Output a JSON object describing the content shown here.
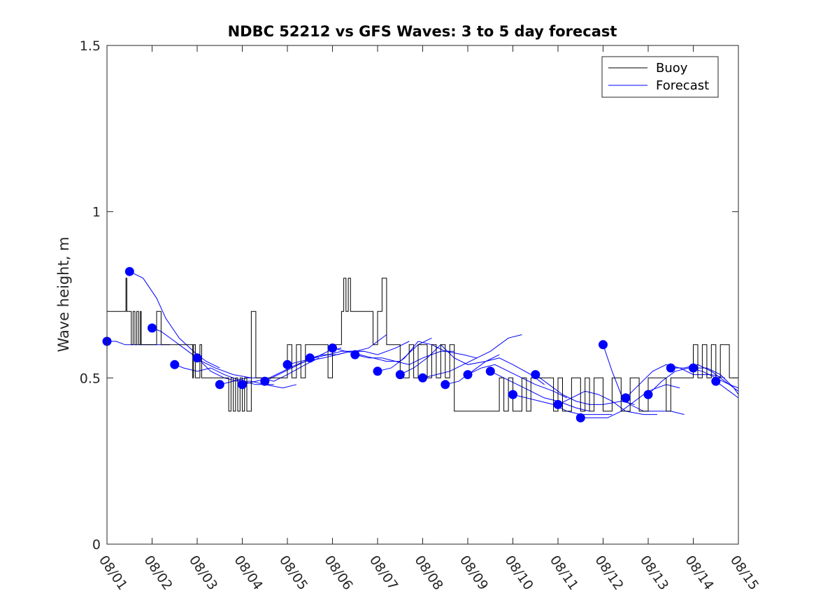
{
  "chart_data": {
    "type": "line",
    "title": "NDBC 52212 vs GFS Waves: 3 to 5 day forecast",
    "xlabel": "",
    "ylabel": "Wave height, m",
    "xlim": [
      0,
      14
    ],
    "ylim": [
      0,
      1.5
    ],
    "yticks": [
      0,
      0.5,
      1,
      1.5
    ],
    "ytick_labels": [
      "0",
      "0.5",
      "1",
      "1.5"
    ],
    "xtick_labels": [
      "08/01",
      "08/02",
      "08/03",
      "08/04",
      "08/05",
      "08/06",
      "08/07",
      "08/08",
      "08/09",
      "08/10",
      "08/11",
      "08/12",
      "08/13",
      "08/14",
      "08/15"
    ],
    "legend": {
      "position": "top-right",
      "entries": [
        {
          "label": "Buoy",
          "color": "#000000"
        },
        {
          "label": "Forecast",
          "color": "#0000ff"
        }
      ]
    },
    "colors": {
      "buoy": "#000000",
      "forecast": "#0000ff"
    },
    "buoy": {
      "name": "Buoy",
      "x": [
        0,
        0.2,
        0.4,
        0.42,
        0.44,
        0.5,
        0.54,
        0.58,
        0.62,
        0.66,
        0.7,
        0.74,
        0.76,
        0.8,
        1.0,
        1.1,
        1.2,
        1.5,
        1.8,
        1.9,
        1.92,
        1.96,
        2.0,
        2.06,
        2.1,
        2.2,
        2.3,
        2.4,
        2.6,
        2.7,
        2.75,
        2.8,
        2.85,
        2.9,
        2.95,
        3.0,
        3.05,
        3.1,
        3.2,
        3.3,
        3.5,
        3.9,
        4.0,
        4.1,
        4.2,
        4.3,
        4.4,
        4.6,
        4.8,
        4.9,
        5.0,
        5.1,
        5.2,
        5.25,
        5.3,
        5.35,
        5.4,
        5.6,
        5.8,
        5.9,
        6.0,
        6.1,
        6.2,
        6.3,
        6.5,
        6.7,
        6.8,
        6.9,
        7.0,
        7.1,
        7.2,
        7.3,
        7.4,
        7.5,
        7.6,
        7.7,
        7.8,
        8.0,
        8.2,
        8.4,
        8.6,
        8.7,
        8.8,
        8.9,
        9.0,
        9.2,
        9.3,
        9.4,
        9.5,
        9.6,
        9.7,
        9.8,
        9.9,
        10.0,
        10.1,
        10.3,
        10.5,
        10.6,
        10.7,
        10.8,
        11.0,
        11.2,
        11.4,
        11.6,
        11.8,
        11.9,
        12.0,
        12.2,
        12.4,
        12.5,
        12.6,
        12.8,
        13.0,
        13.1,
        13.2,
        13.3,
        13.4,
        13.5,
        13.6,
        13.8,
        14.0
      ],
      "y": [
        0.7,
        0.7,
        0.7,
        0.8,
        0.7,
        0.7,
        0.6,
        0.7,
        0.6,
        0.7,
        0.6,
        0.7,
        0.6,
        0.6,
        0.6,
        0.7,
        0.6,
        0.6,
        0.6,
        0.5,
        0.6,
        0.5,
        0.5,
        0.6,
        0.5,
        0.5,
        0.5,
        0.5,
        0.5,
        0.4,
        0.5,
        0.4,
        0.5,
        0.4,
        0.5,
        0.4,
        0.5,
        0.4,
        0.7,
        0.5,
        0.5,
        0.5,
        0.6,
        0.5,
        0.6,
        0.5,
        0.6,
        0.6,
        0.6,
        0.5,
        0.6,
        0.6,
        0.7,
        0.8,
        0.7,
        0.8,
        0.7,
        0.7,
        0.7,
        0.6,
        0.7,
        0.8,
        0.6,
        0.6,
        0.5,
        0.6,
        0.5,
        0.6,
        0.6,
        0.5,
        0.6,
        0.5,
        0.6,
        0.5,
        0.6,
        0.4,
        0.4,
        0.4,
        0.4,
        0.4,
        0.4,
        0.5,
        0.4,
        0.5,
        0.4,
        0.5,
        0.4,
        0.5,
        0.5,
        0.5,
        0.5,
        0.5,
        0.4,
        0.5,
        0.4,
        0.5,
        0.4,
        0.5,
        0.4,
        0.5,
        0.4,
        0.5,
        0.4,
        0.5,
        0.4,
        0.4,
        0.5,
        0.5,
        0.4,
        0.5,
        0.5,
        0.5,
        0.6,
        0.5,
        0.6,
        0.5,
        0.6,
        0.5,
        0.6,
        0.5,
        0.5
      ]
    },
    "forecast_series": [
      {
        "x": [
          0,
          0.2,
          0.4,
          0.8,
          1.2,
          1.4
        ],
        "y": [
          0.61,
          0.61,
          0.6,
          0.6,
          0.6,
          0.6
        ]
      },
      {
        "x": [
          0.5,
          0.8,
          1.1,
          1.3,
          1.6,
          2.0,
          2.2,
          2.5
        ],
        "y": [
          0.82,
          0.8,
          0.74,
          0.68,
          0.62,
          0.57,
          0.55,
          0.53
        ]
      },
      {
        "x": [
          1.0,
          1.2,
          1.5,
          1.8,
          2.1,
          2.4,
          2.8,
          3.2
        ],
        "y": [
          0.65,
          0.64,
          0.61,
          0.58,
          0.55,
          0.53,
          0.51,
          0.5
        ]
      },
      {
        "x": [
          1.5,
          1.7,
          2.0,
          2.3,
          2.6,
          3.0,
          3.3,
          3.7
        ],
        "y": [
          0.54,
          0.53,
          0.52,
          0.53,
          0.51,
          0.49,
          0.48,
          0.48
        ]
      },
      {
        "x": [
          2.0,
          2.3,
          2.6,
          2.9,
          3.2,
          3.5,
          3.9,
          4.2
        ],
        "y": [
          0.56,
          0.52,
          0.5,
          0.49,
          0.49,
          0.48,
          0.47,
          0.48
        ]
      },
      {
        "x": [
          2.5,
          2.8,
          3.1,
          3.4,
          3.7,
          4.0,
          4.4,
          4.7
        ],
        "y": [
          0.48,
          0.49,
          0.5,
          0.5,
          0.49,
          0.51,
          0.54,
          0.56
        ]
      },
      {
        "x": [
          3.0,
          3.3,
          3.6,
          3.9,
          4.2,
          4.6,
          4.9,
          5.2
        ],
        "y": [
          0.48,
          0.49,
          0.5,
          0.52,
          0.54,
          0.56,
          0.58,
          0.59
        ]
      },
      {
        "x": [
          3.5,
          3.8,
          4.1,
          4.4,
          4.8,
          5.1,
          5.4,
          5.7
        ],
        "y": [
          0.49,
          0.51,
          0.53,
          0.55,
          0.56,
          0.57,
          0.58,
          0.58
        ]
      },
      {
        "x": [
          4.0,
          4.3,
          4.6,
          4.9,
          5.2,
          5.5,
          5.8,
          6.2
        ],
        "y": [
          0.54,
          0.55,
          0.56,
          0.57,
          0.58,
          0.58,
          0.59,
          0.63
        ]
      },
      {
        "x": [
          4.5,
          4.8,
          5.1,
          5.4,
          5.7,
          6.0,
          6.4,
          6.7
        ],
        "y": [
          0.56,
          0.57,
          0.57,
          0.58,
          0.58,
          0.57,
          0.59,
          0.61
        ]
      },
      {
        "x": [
          5.0,
          5.3,
          5.6,
          5.9,
          6.2,
          6.5,
          6.9,
          7.2
        ],
        "y": [
          0.59,
          0.58,
          0.57,
          0.56,
          0.55,
          0.55,
          0.6,
          0.62
        ]
      },
      {
        "x": [
          5.5,
          5.8,
          6.1,
          6.4,
          6.7,
          7.0,
          7.4,
          7.7
        ],
        "y": [
          0.57,
          0.56,
          0.56,
          0.55,
          0.54,
          0.56,
          0.58,
          0.58
        ]
      },
      {
        "x": [
          6.0,
          6.3,
          6.6,
          6.9,
          7.2,
          7.5,
          7.9,
          8.2
        ],
        "y": [
          0.52,
          0.53,
          0.56,
          0.61,
          0.6,
          0.58,
          0.57,
          0.56
        ]
      },
      {
        "x": [
          6.5,
          6.8,
          7.1,
          7.4,
          7.7,
          8.0,
          8.4,
          8.7
        ],
        "y": [
          0.51,
          0.53,
          0.56,
          0.6,
          0.56,
          0.54,
          0.55,
          0.57
        ]
      },
      {
        "x": [
          7.0,
          7.3,
          7.6,
          7.9,
          8.2,
          8.5,
          8.9,
          9.2
        ],
        "y": [
          0.5,
          0.51,
          0.52,
          0.54,
          0.56,
          0.58,
          0.62,
          0.63
        ]
      },
      {
        "x": [
          7.5,
          7.8,
          8.1,
          8.4,
          8.7,
          9.0,
          9.4,
          9.7
        ],
        "y": [
          0.48,
          0.49,
          0.52,
          0.55,
          0.56,
          0.54,
          0.51,
          0.48
        ]
      },
      {
        "x": [
          8.0,
          8.3,
          8.6,
          8.9,
          9.2,
          9.5,
          9.9,
          10.2
        ],
        "y": [
          0.51,
          0.53,
          0.54,
          0.52,
          0.5,
          0.48,
          0.46,
          0.44
        ]
      },
      {
        "x": [
          8.5,
          8.8,
          9.1,
          9.4,
          9.7,
          10.0,
          10.4,
          10.7
        ],
        "y": [
          0.52,
          0.5,
          0.48,
          0.46,
          0.44,
          0.43,
          0.41,
          0.4
        ]
      },
      {
        "x": [
          9.0,
          9.3,
          9.6,
          9.9,
          10.2,
          10.5,
          10.9,
          11.2
        ],
        "y": [
          0.45,
          0.44,
          0.43,
          0.42,
          0.4,
          0.39,
          0.39,
          0.39
        ]
      },
      {
        "x": [
          9.5,
          9.8,
          10.1,
          10.4,
          10.7,
          11.0,
          11.4,
          11.7
        ],
        "y": [
          0.51,
          0.48,
          0.45,
          0.43,
          0.42,
          0.42,
          0.43,
          0.42
        ]
      },
      {
        "x": [
          10.0,
          10.3,
          10.6,
          10.9,
          11.2,
          11.5,
          11.9,
          12.2
        ],
        "y": [
          0.42,
          0.44,
          0.46,
          0.45,
          0.43,
          0.4,
          0.39,
          0.39
        ]
      },
      {
        "x": [
          10.5,
          10.8,
          11.1,
          11.4,
          11.7,
          12.0,
          12.4,
          12.7
        ],
        "y": [
          0.38,
          0.38,
          0.38,
          0.4,
          0.43,
          0.46,
          0.48,
          0.47
        ]
      },
      {
        "x": [
          11.0,
          11.2,
          11.4,
          11.6,
          11.9,
          12.2,
          12.5,
          12.8
        ],
        "y": [
          0.6,
          0.52,
          0.45,
          0.42,
          0.4,
          0.4,
          0.4,
          0.39
        ]
      },
      {
        "x": [
          11.5,
          11.8,
          12.1,
          12.4,
          12.7,
          13.0,
          13.4,
          13.7
        ],
        "y": [
          0.44,
          0.48,
          0.52,
          0.54,
          0.53,
          0.51,
          0.51,
          0.5
        ]
      },
      {
        "x": [
          12.0,
          12.3,
          12.6,
          12.9,
          13.2,
          13.5,
          13.8,
          14.0
        ],
        "y": [
          0.45,
          0.49,
          0.52,
          0.53,
          0.52,
          0.5,
          0.48,
          0.47
        ]
      },
      {
        "x": [
          12.5,
          12.8,
          13.1,
          13.4,
          13.7,
          14.0
        ],
        "y": [
          0.53,
          0.53,
          0.54,
          0.52,
          0.49,
          0.46
        ]
      },
      {
        "x": [
          13.0,
          13.3,
          13.6,
          13.9,
          14.0
        ],
        "y": [
          0.53,
          0.53,
          0.51,
          0.47,
          0.45
        ]
      },
      {
        "x": [
          13.5,
          13.8,
          14.0
        ],
        "y": [
          0.49,
          0.46,
          0.44
        ]
      }
    ],
    "forecast_markers": {
      "name": "Forecast",
      "x": [
        0,
        0.5,
        1.0,
        1.5,
        2.0,
        2.5,
        3.0,
        3.5,
        4.0,
        4.5,
        5.0,
        5.5,
        6.0,
        6.5,
        7.0,
        7.5,
        8.0,
        8.5,
        9.0,
        9.5,
        10.0,
        10.5,
        11.0,
        11.5,
        12.0,
        12.5,
        13.0,
        13.5
      ],
      "y": [
        0.61,
        0.82,
        0.65,
        0.54,
        0.56,
        0.48,
        0.48,
        0.49,
        0.54,
        0.56,
        0.59,
        0.57,
        0.52,
        0.51,
        0.5,
        0.48,
        0.51,
        0.52,
        0.45,
        0.51,
        0.42,
        0.38,
        0.6,
        0.44,
        0.45,
        0.53,
        0.53,
        0.49
      ]
    }
  }
}
